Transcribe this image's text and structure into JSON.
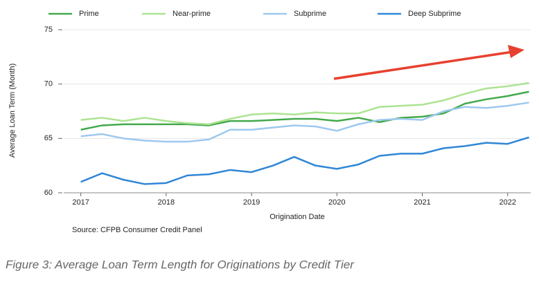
{
  "chart_data": {
    "type": "line",
    "x_label": "Origination Date",
    "y_label": "Average Loan Term (Month)",
    "source": "Source: CFPB Consumer Credit Panel",
    "caption": "Figure 3: Average Loan Term Length for Originations by Credit Tier",
    "x": [
      2017,
      2017.25,
      2017.5,
      2017.75,
      2018,
      2018.25,
      2018.5,
      2018.75,
      2019,
      2019.25,
      2019.5,
      2019.75,
      2020,
      2020.25,
      2020.5,
      2020.75,
      2021,
      2021.25,
      2021.5,
      2021.75,
      2022,
      2022.25
    ],
    "series": [
      {
        "name": "Prime",
        "color": "#43a94b",
        "values": [
          65.8,
          66.2,
          66.3,
          66.3,
          66.3,
          66.3,
          66.2,
          66.6,
          66.6,
          66.7,
          66.8,
          66.8,
          66.6,
          66.9,
          66.5,
          66.9,
          67.0,
          67.3,
          68.2,
          68.6,
          68.9,
          69.3
        ]
      },
      {
        "name": "Near-prime",
        "color": "#ace391",
        "values": [
          66.7,
          66.9,
          66.6,
          66.9,
          66.6,
          66.4,
          66.3,
          66.8,
          67.2,
          67.3,
          67.2,
          67.4,
          67.3,
          67.3,
          67.9,
          68.0,
          68.1,
          68.5,
          69.1,
          69.6,
          69.8,
          70.1
        ]
      },
      {
        "name": "Subprime",
        "color": "#9ec8ef",
        "values": [
          65.2,
          65.4,
          65.0,
          64.8,
          64.7,
          64.7,
          64.9,
          65.8,
          65.8,
          66.0,
          66.2,
          66.1,
          65.7,
          66.3,
          66.7,
          66.8,
          66.7,
          67.5,
          67.9,
          67.8,
          68.0,
          68.3
        ]
      },
      {
        "name": "Deep Subprime",
        "color": "#2f86d6",
        "values": [
          61.0,
          61.8,
          61.2,
          60.8,
          60.9,
          61.6,
          61.7,
          62.1,
          61.9,
          62.5,
          63.3,
          62.5,
          62.2,
          62.6,
          63.4,
          63.6,
          63.6,
          64.1,
          64.3,
          64.6,
          64.5,
          65.1
        ]
      }
    ],
    "xlim": [
      2016.8,
      2022.27
    ],
    "xticks": [
      2017,
      2018,
      2019,
      2020,
      2021,
      2022
    ],
    "ylim": [
      60,
      75
    ],
    "yticks": [
      60,
      65,
      70,
      75
    ],
    "grid": true
  }
}
